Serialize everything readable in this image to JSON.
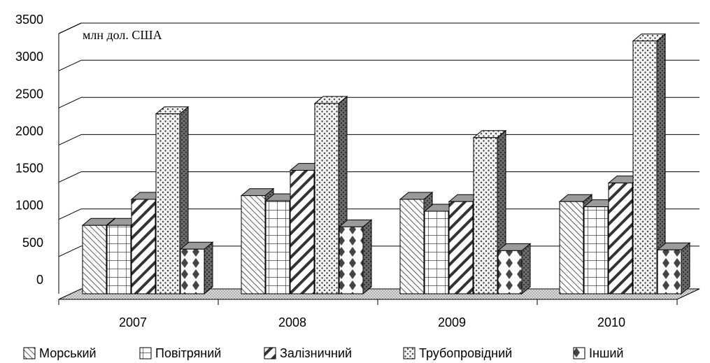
{
  "chart_data": {
    "type": "bar",
    "title": "",
    "unit_label": "млн дол. США",
    "xlabel": "",
    "ylabel": "",
    "categories": [
      "2007",
      "2008",
      "2009",
      "2010"
    ],
    "y_ticks": [
      "0",
      "500",
      "1000",
      "1500",
      "2000",
      "2500",
      "3000",
      "3500"
    ],
    "ylim": [
      0,
      3500
    ],
    "grid": true,
    "legend_position": "bottom",
    "series": [
      {
        "name": "Морський",
        "values": [
          920,
          1320,
          1270,
          1240
        ],
        "pattern": "diag-hatch-fine",
        "color": "#ffffff"
      },
      {
        "name": "Повітряний",
        "values": [
          920,
          1250,
          1110,
          1170
        ],
        "pattern": "grid",
        "color": "#ffffff"
      },
      {
        "name": "Залізничний",
        "values": [
          1270,
          1660,
          1240,
          1490
        ],
        "pattern": "diag-stripes-wide",
        "color": "#ffffff"
      },
      {
        "name": "Трубопровідний",
        "values": [
          2420,
          2560,
          2100,
          3400
        ],
        "pattern": "dots",
        "color": "#ffffff"
      },
      {
        "name": "Інший",
        "values": [
          600,
          900,
          580,
          590
        ],
        "pattern": "diamonds",
        "color": "#ffffff"
      }
    ],
    "colors": {
      "floor": "#d9d9d9",
      "side": "#555555",
      "top": "#bfbfbf",
      "grid": "#000000"
    }
  }
}
